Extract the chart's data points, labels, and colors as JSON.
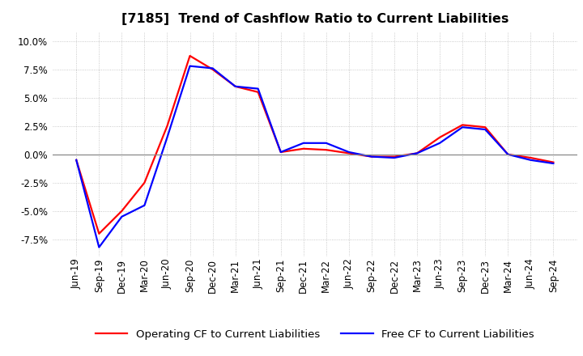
{
  "title": "[7185]  Trend of Cashflow Ratio to Current Liabilities",
  "x_labels": [
    "Jun-19",
    "Sep-19",
    "Dec-19",
    "Mar-20",
    "Jun-20",
    "Sep-20",
    "Dec-20",
    "Mar-21",
    "Jun-21",
    "Sep-21",
    "Dec-21",
    "Mar-22",
    "Jun-22",
    "Sep-22",
    "Dec-22",
    "Mar-23",
    "Jun-23",
    "Sep-23",
    "Dec-23",
    "Mar-24",
    "Jun-24",
    "Sep-24"
  ],
  "operating_cf": [
    -0.5,
    -7.0,
    -5.0,
    -2.5,
    2.5,
    8.7,
    7.5,
    6.0,
    5.5,
    0.2,
    0.5,
    0.4,
    0.1,
    -0.2,
    -0.2,
    0.1,
    1.5,
    2.6,
    2.4,
    0.0,
    -0.3,
    -0.7
  ],
  "free_cf": [
    -0.5,
    -8.2,
    -5.5,
    -4.5,
    1.5,
    7.8,
    7.6,
    6.0,
    5.8,
    0.2,
    1.0,
    1.0,
    0.2,
    -0.2,
    -0.3,
    0.1,
    1.0,
    2.4,
    2.2,
    0.0,
    -0.5,
    -0.8
  ],
  "ylim": [
    -9.0,
    10.8
  ],
  "yticks": [
    -7.5,
    -5.0,
    -2.5,
    0.0,
    2.5,
    5.0,
    7.5,
    10.0
  ],
  "operating_color": "#FF0000",
  "free_color": "#0000FF",
  "background_color": "#FFFFFF",
  "grid_color": "#BBBBBB",
  "legend_operating": "Operating CF to Current Liabilities",
  "legend_free": "Free CF to Current Liabilities",
  "title_fontsize": 11.5,
  "axis_fontsize": 8.5,
  "legend_fontsize": 9.5,
  "line_width": 1.6
}
